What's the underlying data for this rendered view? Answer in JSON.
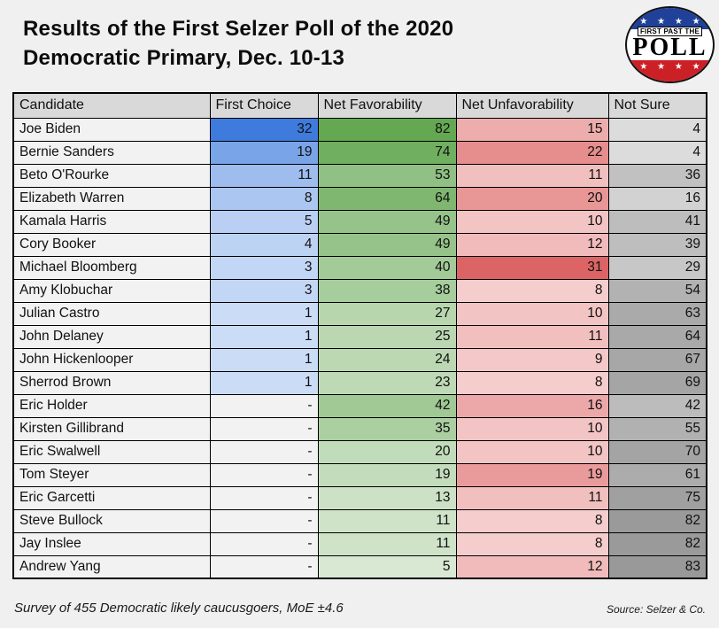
{
  "header": {
    "title_line1": "Results of the First Selzer Poll of the 2020",
    "title_line2": "Democratic Primary, Dec. 10-13",
    "logo": {
      "top_label": "FIRST PAST THE",
      "main_label": "POLL",
      "stars": "★ ★ ★ ★",
      "blue": "#20409a",
      "red": "#cc2027"
    }
  },
  "footer": {
    "note": "Survey of 455 Democratic likely caucusgoers, MoE ±4.6",
    "source": "Source: Selzer & Co."
  },
  "chart_data": {
    "type": "table",
    "title": "Results of the First Selzer Poll of the 2020 Democratic Primary, Dec. 10-13",
    "columns": [
      "Candidate",
      "First Choice",
      "Net Favorability",
      "Net Unfavorability",
      "Not Sure"
    ],
    "column_keys": [
      "candidate",
      "first_choice",
      "net_favorability",
      "net_unfavorability",
      "not_sure"
    ],
    "missing_value_display": "-",
    "rows": [
      {
        "candidate": "Joe Biden",
        "first_choice": 32,
        "net_favorability": 82,
        "net_unfavorability": 15,
        "not_sure": 4
      },
      {
        "candidate": "Bernie Sanders",
        "first_choice": 19,
        "net_favorability": 74,
        "net_unfavorability": 22,
        "not_sure": 4
      },
      {
        "candidate": "Beto O'Rourke",
        "first_choice": 11,
        "net_favorability": 53,
        "net_unfavorability": 11,
        "not_sure": 36
      },
      {
        "candidate": "Elizabeth Warren",
        "first_choice": 8,
        "net_favorability": 64,
        "net_unfavorability": 20,
        "not_sure": 16
      },
      {
        "candidate": "Kamala Harris",
        "first_choice": 5,
        "net_favorability": 49,
        "net_unfavorability": 10,
        "not_sure": 41
      },
      {
        "candidate": "Cory Booker",
        "first_choice": 4,
        "net_favorability": 49,
        "net_unfavorability": 12,
        "not_sure": 39
      },
      {
        "candidate": "Michael Bloomberg",
        "first_choice": 3,
        "net_favorability": 40,
        "net_unfavorability": 31,
        "not_sure": 29
      },
      {
        "candidate": "Amy Klobuchar",
        "first_choice": 3,
        "net_favorability": 38,
        "net_unfavorability": 8,
        "not_sure": 54
      },
      {
        "candidate": "Julian Castro",
        "first_choice": 1,
        "net_favorability": 27,
        "net_unfavorability": 10,
        "not_sure": 63
      },
      {
        "candidate": "John Delaney",
        "first_choice": 1,
        "net_favorability": 25,
        "net_unfavorability": 11,
        "not_sure": 64
      },
      {
        "candidate": "John Hickenlooper",
        "first_choice": 1,
        "net_favorability": 24,
        "net_unfavorability": 9,
        "not_sure": 67
      },
      {
        "candidate": "Sherrod Brown",
        "first_choice": 1,
        "net_favorability": 23,
        "net_unfavorability": 8,
        "not_sure": 69
      },
      {
        "candidate": "Eric Holder",
        "first_choice": null,
        "net_favorability": 42,
        "net_unfavorability": 16,
        "not_sure": 42
      },
      {
        "candidate": "Kirsten Gillibrand",
        "first_choice": null,
        "net_favorability": 35,
        "net_unfavorability": 10,
        "not_sure": 55
      },
      {
        "candidate": "Eric Swalwell",
        "first_choice": null,
        "net_favorability": 20,
        "net_unfavorability": 10,
        "not_sure": 70
      },
      {
        "candidate": "Tom Steyer",
        "first_choice": null,
        "net_favorability": 19,
        "net_unfavorability": 19,
        "not_sure": 61
      },
      {
        "candidate": "Eric Garcetti",
        "first_choice": null,
        "net_favorability": 13,
        "net_unfavorability": 11,
        "not_sure": 75
      },
      {
        "candidate": "Steve Bullock",
        "first_choice": null,
        "net_favorability": 11,
        "net_unfavorability": 8,
        "not_sure": 82
      },
      {
        "candidate": "Jay Inslee",
        "first_choice": null,
        "net_favorability": 11,
        "net_unfavorability": 8,
        "not_sure": 82
      },
      {
        "candidate": "Andrew Yang",
        "first_choice": null,
        "net_favorability": 5,
        "net_unfavorability": 12,
        "not_sure": 83
      }
    ],
    "heatmap_scales": {
      "first_choice": {
        "min": 1,
        "max": 32,
        "min_color": "#cbdcf7",
        "max_color": "#3e7bdc"
      },
      "net_favorability": {
        "min": 5,
        "max": 82,
        "min_color": "#d8e8d3",
        "max_color": "#64a852"
      },
      "net_unfavorability": {
        "min": 8,
        "max": 31,
        "min_color": "#f5cdcd",
        "max_color": "#dc6464"
      },
      "not_sure": {
        "min": 4,
        "max": 83,
        "min_color": "#dcdcdc",
        "max_color": "#999999"
      }
    },
    "colors": {
      "page_bg": "#f0f0f0",
      "header_bg": "#d9d9d9",
      "name_cell_bg": "#f2f2f2",
      "missing_cell_bg": "#f2f2f2",
      "border": "#000000"
    },
    "layout": {
      "legend": false,
      "grid": true
    }
  }
}
